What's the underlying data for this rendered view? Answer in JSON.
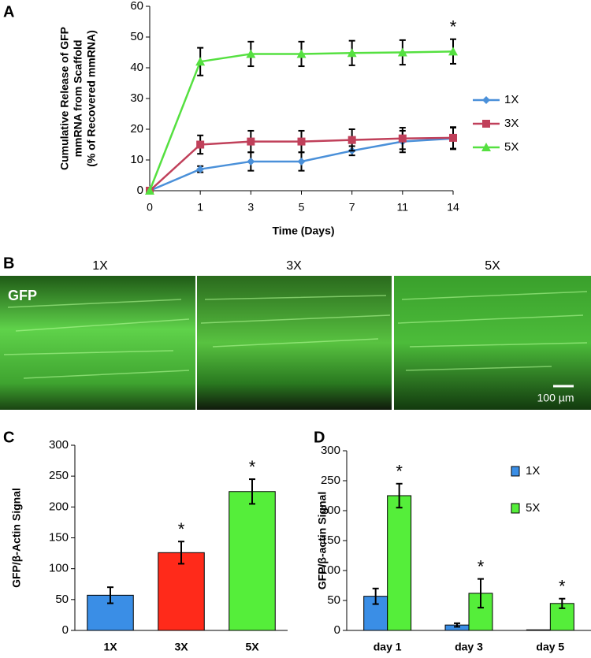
{
  "chart_data": [
    {
      "panel": "A",
      "type": "line",
      "categories": [
        "0",
        "1",
        "3",
        "5",
        "7",
        "11",
        "14"
      ],
      "ylabel": [
        "Cumulative  Release  of  GFP",
        "mmRNA  from  Scaffold",
        "(% of Recovered  mmRNA)"
      ],
      "xlabel": "Time  (Days)",
      "ylim": [
        0,
        60
      ],
      "yticks": [
        0,
        10,
        20,
        30,
        40,
        50,
        60
      ],
      "series": [
        {
          "name": "1X",
          "color": "#4a90d9",
          "marker": "diamond",
          "values": [
            0,
            7,
            9.5,
            9.5,
            13,
            16,
            17
          ],
          "errors": [
            0,
            1,
            3,
            3,
            1.5,
            3.5,
            3.5
          ]
        },
        {
          "name": "3X",
          "color": "#c0405a",
          "marker": "square",
          "values": [
            0,
            15,
            16,
            16,
            16.5,
            17,
            17.2
          ],
          "errors": [
            0,
            3,
            3.5,
            3.5,
            3.5,
            3.5,
            3.5
          ]
        },
        {
          "name": "5X",
          "color": "#55e040",
          "marker": "triangle",
          "values": [
            0,
            42,
            44.5,
            44.5,
            44.8,
            45,
            45.3
          ],
          "errors": [
            0,
            4.5,
            4,
            4,
            4,
            4,
            4
          ],
          "significance": [
            null,
            null,
            null,
            null,
            null,
            null,
            "*"
          ]
        }
      ]
    },
    {
      "panel": "C",
      "type": "bar",
      "categories": [
        "1X",
        "3X",
        "5X"
      ],
      "ylabel": [
        "GFP/β-Actin Signal"
      ],
      "ylim": [
        0,
        300
      ],
      "yticks": [
        0,
        50,
        100,
        150,
        200,
        250,
        300
      ],
      "series": [
        {
          "colors": [
            "#3a8ee6",
            "#ff2a1a",
            "#55ee3a"
          ],
          "values": [
            57,
            126,
            225
          ],
          "errors": [
            13,
            18,
            20
          ],
          "significance": [
            null,
            "*",
            "*"
          ]
        }
      ]
    },
    {
      "panel": "D",
      "type": "bar",
      "categories": [
        "day 1",
        "day 3",
        "day 5"
      ],
      "ylabel": [
        "GFP/β-actin Signal"
      ],
      "ylim": [
        0,
        300
      ],
      "yticks": [
        0,
        50,
        100,
        150,
        200,
        250,
        300
      ],
      "series": [
        {
          "name": "1X",
          "color": "#3a8ee6",
          "values": [
            57,
            9,
            1
          ],
          "errors": [
            13,
            3,
            0
          ]
        },
        {
          "name": "5X",
          "color": "#55ee3a",
          "values": [
            225,
            62,
            45
          ],
          "errors": [
            20,
            24,
            8
          ],
          "significance": [
            "*",
            "*",
            "*"
          ]
        }
      ]
    }
  ],
  "image_panel": {
    "panel": "B",
    "labels": [
      "1X",
      "3X",
      "5X"
    ],
    "stain": "GFP",
    "scale_bar": "100 µm"
  }
}
